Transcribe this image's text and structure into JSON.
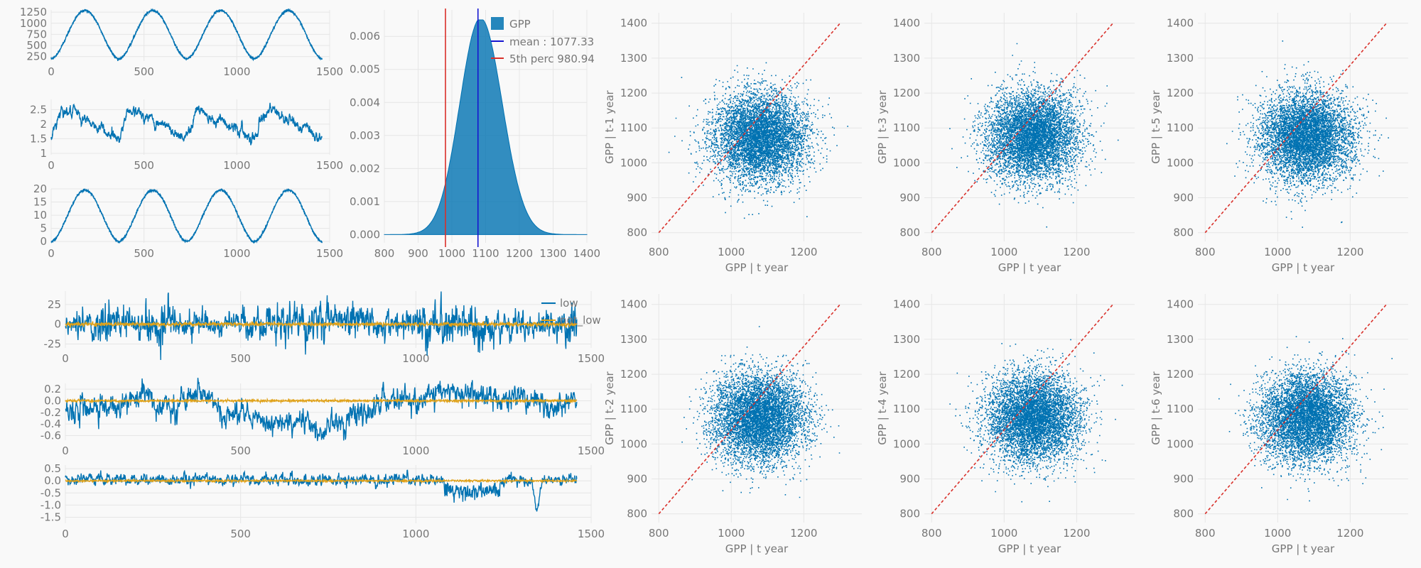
{
  "figure": {
    "background": "#f9f9f9"
  },
  "colors": {
    "blue": "#0072b2",
    "orange": "#e0a21a",
    "red": "#d9302a",
    "mean_line": "#1515d0",
    "grid": "#e6e6e6",
    "text": "#777777"
  },
  "chart_data": [
    {
      "id": "ts1",
      "type": "line",
      "xlim": [
        0,
        1500
      ],
      "ylim": [
        150,
        1300
      ],
      "xticks": [
        0,
        500,
        1000,
        1500
      ],
      "yticks": [
        250,
        500,
        750,
        1000,
        1250
      ],
      "series": [
        {
          "pattern": "seasonal",
          "periods": 4,
          "min": 200,
          "max": 1290,
          "length": 1460,
          "color": "#0072b2"
        }
      ]
    },
    {
      "id": "ts2",
      "type": "line",
      "xlim": [
        0,
        1500
      ],
      "ylim": [
        0.95,
        2.85
      ],
      "xticks": [
        0,
        500,
        1000,
        1500
      ],
      "yticks": [
        1.0,
        1.5,
        2.0,
        2.5
      ],
      "series": [
        {
          "pattern": "sawtooth-noisy",
          "periods": 4,
          "min": 1.2,
          "max": 2.7,
          "length": 1460,
          "color": "#0072b2"
        }
      ]
    },
    {
      "id": "ts3",
      "type": "line",
      "xlim": [
        0,
        1500
      ],
      "ylim": [
        -0.5,
        20
      ],
      "xticks": [
        0,
        500,
        1000,
        1500
      ],
      "yticks": [
        0,
        5,
        10,
        15,
        20
      ],
      "series": [
        {
          "pattern": "seasonal",
          "periods": 4,
          "min": 0,
          "max": 19.5,
          "length": 1460,
          "color": "#0072b2"
        }
      ]
    },
    {
      "id": "density",
      "type": "area",
      "xlim": [
        800,
        1400
      ],
      "ylim": [
        -0.00025,
        0.0068
      ],
      "xticks": [
        800,
        900,
        1000,
        1100,
        1200,
        1300,
        1400
      ],
      "yticks": [
        "0.000",
        "0.001",
        "0.002",
        "0.003",
        "0.004",
        "0.005",
        "0.006"
      ],
      "distribution": {
        "mean": 1077.33,
        "sd": 63,
        "peak": 0.0065
      },
      "lines": [
        {
          "x": 1077.33,
          "color": "#1515d0"
        },
        {
          "x": 980.94,
          "color": "#d9302a"
        }
      ],
      "legend": [
        "GPP",
        "mean : 1077.33",
        "5th perc 980.94"
      ],
      "legend_position": "top-right"
    },
    {
      "id": "anom1",
      "type": "line",
      "xlim": [
        0,
        1500
      ],
      "ylim": [
        -30,
        42
      ],
      "xticks": [
        0,
        500,
        1000,
        1500
      ],
      "yticks": [
        -25,
        0,
        25
      ],
      "series": [
        {
          "name": "low",
          "pattern": "noise",
          "amp": 9,
          "length": 1460,
          "color": "#0072b2"
        },
        {
          "name": "not_low",
          "pattern": "flat",
          "amp": 1.2,
          "length": 1460,
          "color": "#e0a21a"
        }
      ],
      "legend_position": "top-right"
    },
    {
      "id": "anom2",
      "type": "line",
      "xlim": [
        0,
        1500
      ],
      "ylim": [
        -0.68,
        0.3
      ],
      "xticks": [
        0,
        500,
        1000,
        1500
      ],
      "yticks": [
        "0.2",
        "0.0",
        "-0.2",
        "-0.4",
        "-0.6"
      ],
      "series": [
        {
          "pattern": "noise-drift",
          "amp": 0.09,
          "length": 1460,
          "color": "#0072b2"
        },
        {
          "pattern": "flat",
          "amp": 0.01,
          "length": 1460,
          "color": "#e0a21a"
        }
      ]
    },
    {
      "id": "anom3",
      "type": "line",
      "xlim": [
        0,
        1500
      ],
      "ylim": [
        -1.75,
        0.65
      ],
      "xticks": [
        0,
        500,
        1000,
        1500
      ],
      "yticks": [
        "0.5",
        "0.0",
        "-0.5",
        "-1.0",
        "-1.5"
      ],
      "series": [
        {
          "pattern": "noise-dip",
          "amp": 0.1,
          "length": 1460,
          "color": "#0072b2"
        },
        {
          "pattern": "flat",
          "amp": 0.02,
          "length": 1460,
          "color": "#e0a21a"
        }
      ]
    },
    {
      "id": "sc1",
      "type": "scatter",
      "xlabel": "GPP | t year",
      "ylabel": "GPP | t-1 year",
      "xlim": [
        780,
        1360
      ],
      "ylim": [
        775,
        1430
      ],
      "xticks": [
        800,
        1000,
        1200
      ],
      "yticks": [
        800,
        900,
        1000,
        1100,
        1200,
        1300,
        1400
      ],
      "cloud": {
        "x_mean": 1077,
        "y_mean": 1077,
        "sd": 63,
        "n": 6000
      },
      "reference_line": {
        "from": [
          800,
          800
        ],
        "to": [
          1300,
          1400
        ],
        "color": "#d9302a"
      }
    },
    {
      "id": "sc2",
      "type": "scatter",
      "xlabel": "GPP | t year",
      "ylabel": "GPP | t-2 year",
      "xlim": [
        780,
        1360
      ],
      "ylim": [
        775,
        1430
      ],
      "xticks": [
        800,
        1000,
        1200
      ],
      "yticks": [
        800,
        900,
        1000,
        1100,
        1200,
        1300,
        1400
      ],
      "cloud": {
        "x_mean": 1077,
        "y_mean": 1077,
        "sd": 63,
        "n": 6000
      },
      "reference_line": {
        "from": [
          800,
          800
        ],
        "to": [
          1300,
          1400
        ],
        "color": "#d9302a"
      }
    },
    {
      "id": "sc3",
      "type": "scatter",
      "xlabel": "GPP | t year",
      "ylabel": "GPP | t-3 year",
      "xlim": [
        780,
        1360
      ],
      "ylim": [
        775,
        1430
      ],
      "xticks": [
        800,
        1000,
        1200
      ],
      "yticks": [
        800,
        900,
        1000,
        1100,
        1200,
        1300,
        1400
      ],
      "cloud": {
        "x_mean": 1077,
        "y_mean": 1077,
        "sd": 63,
        "n": 6000
      },
      "reference_line": {
        "from": [
          800,
          800
        ],
        "to": [
          1300,
          1400
        ],
        "color": "#d9302a"
      }
    },
    {
      "id": "sc4",
      "type": "scatter",
      "xlabel": "GPP | t year",
      "ylabel": "GPP | t-4 year",
      "xlim": [
        780,
        1360
      ],
      "ylim": [
        775,
        1430
      ],
      "xticks": [
        800,
        1000,
        1200
      ],
      "yticks": [
        800,
        900,
        1000,
        1100,
        1200,
        1300,
        1400
      ],
      "cloud": {
        "x_mean": 1077,
        "y_mean": 1077,
        "sd": 63,
        "n": 6000
      },
      "reference_line": {
        "from": [
          800,
          800
        ],
        "to": [
          1300,
          1400
        ],
        "color": "#d9302a"
      }
    },
    {
      "id": "sc5",
      "type": "scatter",
      "xlabel": "GPP | t year",
      "ylabel": "GPP | t-5 year",
      "xlim": [
        780,
        1360
      ],
      "ylim": [
        775,
        1430
      ],
      "xticks": [
        800,
        1000,
        1200
      ],
      "yticks": [
        800,
        900,
        1000,
        1100,
        1200,
        1300,
        1400
      ],
      "cloud": {
        "x_mean": 1077,
        "y_mean": 1077,
        "sd": 63,
        "n": 6000
      },
      "reference_line": {
        "from": [
          800,
          800
        ],
        "to": [
          1300,
          1400
        ],
        "color": "#d9302a"
      }
    },
    {
      "id": "sc6",
      "type": "scatter",
      "xlabel": "GPP | t year",
      "ylabel": "GPP | t-6 year",
      "xlim": [
        780,
        1360
      ],
      "ylim": [
        775,
        1430
      ],
      "xticks": [
        800,
        1000,
        1200
      ],
      "yticks": [
        800,
        900,
        1000,
        1100,
        1200,
        1300,
        1400
      ],
      "cloud": {
        "x_mean": 1077,
        "y_mean": 1077,
        "sd": 63,
        "n": 6000
      },
      "reference_line": {
        "from": [
          800,
          800
        ],
        "to": [
          1300,
          1400
        ],
        "color": "#d9302a"
      }
    }
  ]
}
